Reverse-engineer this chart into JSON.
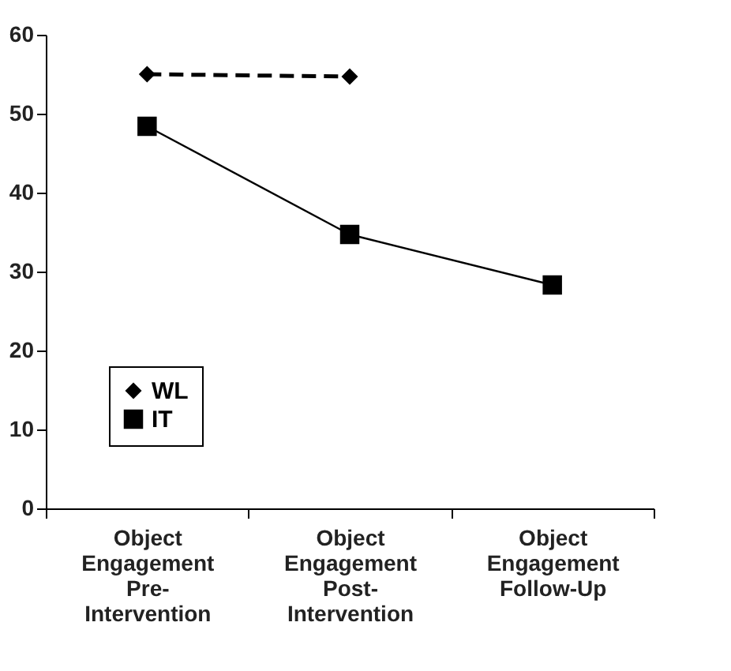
{
  "chart_data": {
    "type": "line",
    "categories": [
      "Object Engagement Pre-Intervention",
      "Object Engagement Post-Intervention",
      "Object Engagement Follow-Up"
    ],
    "series": [
      {
        "name": "WL",
        "color": "#000000",
        "marker": "diamond",
        "line_style": "dashed",
        "values": [
          55,
          54.7,
          null
        ]
      },
      {
        "name": "IT",
        "color": "#000000",
        "marker": "square",
        "line_style": "solid",
        "values": [
          48.4,
          34.7,
          28.3
        ]
      }
    ],
    "ylim": [
      0,
      60
    ],
    "yticks": [
      0,
      10,
      20,
      30,
      40,
      50,
      60
    ],
    "grid": false,
    "legend": "bottom left"
  }
}
